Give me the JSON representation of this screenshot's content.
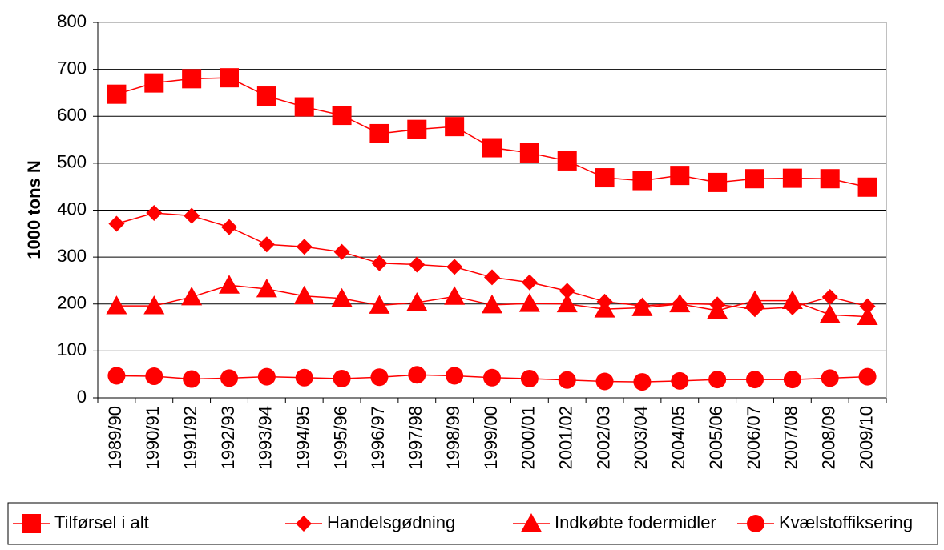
{
  "chart_data": {
    "type": "line",
    "y_label": "1000 tons N",
    "categories": [
      "1989/90",
      "1990/91",
      "1991/92",
      "1992/93",
      "1993/94",
      "1994/95",
      "1995/96",
      "1996/97",
      "1997/98",
      "1998/99",
      "1999/00",
      "2000/01",
      "2001/02",
      "2002/03",
      "2003/04",
      "2004/05",
      "2005/06",
      "2006/07",
      "2007/08",
      "2008/09",
      "2009/10"
    ],
    "series": [
      {
        "name": "Tilførsel i alt",
        "color": "#ff0000",
        "marker": "square",
        "values": [
          647,
          671,
          680,
          682,
          643,
          620,
          602,
          563,
          572,
          578,
          533,
          522,
          505,
          469,
          463,
          474,
          459,
          467,
          468,
          467,
          449
        ]
      },
      {
        "name": "Handelsgødning",
        "color": "#ff0000",
        "marker": "diamond",
        "values": [
          371,
          394,
          388,
          364,
          327,
          322,
          311,
          287,
          284,
          279,
          257,
          246,
          228,
          205,
          196,
          201,
          199,
          189,
          193,
          215,
          195
        ]
      },
      {
        "name": "Indkøbte fodermidler",
        "color": "#ff0000",
        "marker": "triangle",
        "values": [
          196,
          196,
          215,
          240,
          232,
          217,
          212,
          197,
          203,
          216,
          198,
          201,
          200,
          189,
          192,
          200,
          186,
          207,
          207,
          177,
          173
        ]
      },
      {
        "name": "Kvælstoffiksering",
        "color": "#ff0000",
        "marker": "circle",
        "values": [
          47,
          46,
          40,
          42,
          45,
          43,
          41,
          44,
          49,
          47,
          43,
          41,
          38,
          35,
          34,
          36,
          39,
          39,
          39,
          42,
          45
        ]
      }
    ],
    "ylim": [
      0,
      800
    ],
    "yticks": [
      0,
      100,
      200,
      300,
      400,
      500,
      600,
      700,
      800
    ],
    "grid": true,
    "legend": "bottom"
  }
}
